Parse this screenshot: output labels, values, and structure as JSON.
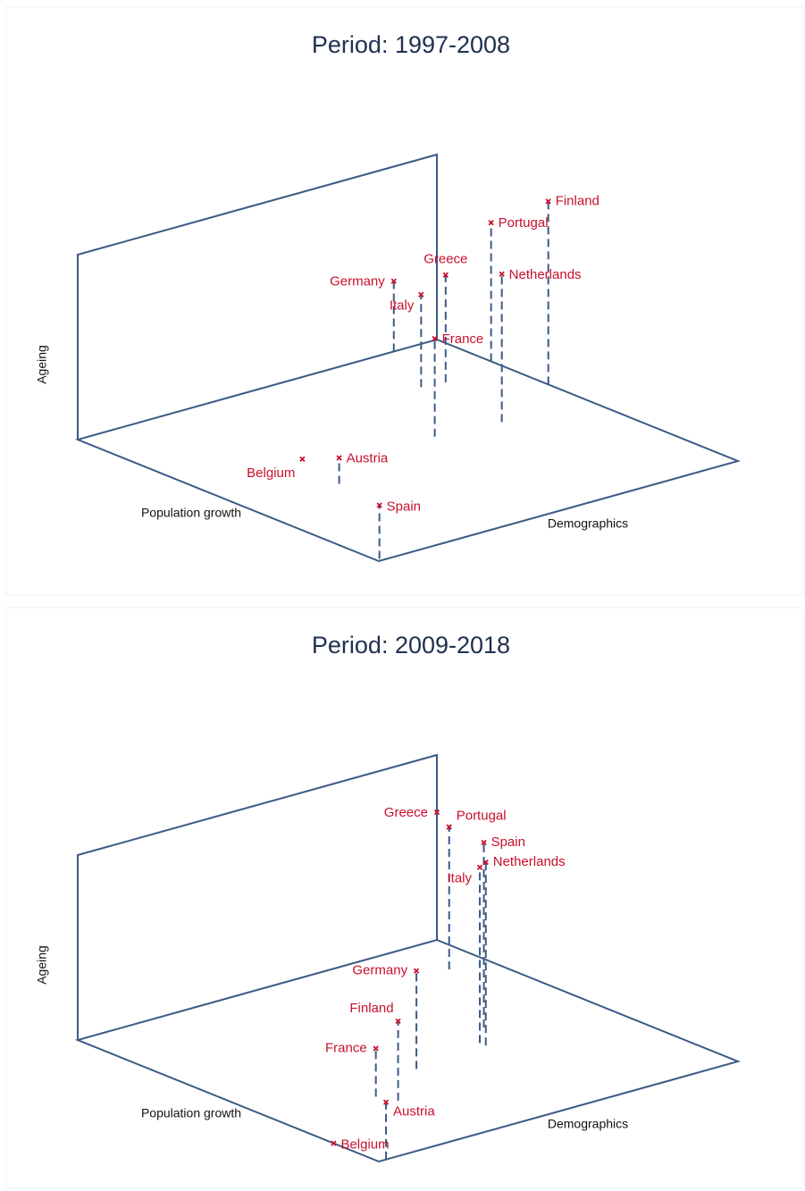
{
  "chart_data": [
    {
      "type": "scatter3d",
      "title": "Period: 1997-2008",
      "xlabel": "Population growth",
      "ylabel": "Demographics",
      "zlabel": "Ageing",
      "xlim": [
        0,
        1
      ],
      "ylim": [
        0,
        1
      ],
      "zlim": [
        0,
        1
      ],
      "color": "#c8102e",
      "axis_color": "#3b5b85",
      "labels": [
        "Finland",
        "Portugal",
        "Greece",
        "Netherlands",
        "Germany",
        "Italy",
        "France",
        "Belgium",
        "Austria",
        "Spain"
      ],
      "x": [
        0.63,
        0.82,
        0.78,
        0.51,
        1.0,
        0.79,
        0.53,
        0.6,
        0.43,
        0.01
      ],
      "y": [
        1.0,
        1.0,
        0.84,
        0.77,
        0.88,
        0.78,
        0.6,
        0.29,
        0.25,
        0.01
      ],
      "z": [
        0.99,
        0.75,
        0.58,
        0.8,
        0.38,
        0.5,
        0.53,
        0.0,
        0.14,
        0.29
      ]
    },
    {
      "type": "scatter3d",
      "title": "Period: 2009-2018",
      "xlabel": "Population growth",
      "ylabel": "Demographics",
      "zlabel": "Ageing",
      "xlim": [
        0,
        1
      ],
      "ylim": [
        0,
        1
      ],
      "zlim": [
        0,
        1
      ],
      "color": "#c8102e",
      "axis_color": "#3b5b85",
      "labels": [
        "Greece",
        "Portugal",
        "Spain",
        "Netherlands",
        "Italy",
        "Germany",
        "Finland",
        "France",
        "Austria",
        "Belgium"
      ],
      "x": [
        1.0,
        0.84,
        0.51,
        0.42,
        0.44,
        0.4,
        0.27,
        0.32,
        0.0,
        0.15
      ],
      "y": [
        1.0,
        0.9,
        0.72,
        0.65,
        0.65,
        0.44,
        0.28,
        0.26,
        0.02,
        0.0
      ],
      "z": [
        0.69,
        0.77,
        1.0,
        0.99,
        0.95,
        0.53,
        0.43,
        0.26,
        0.31,
        0.0
      ]
    }
  ]
}
